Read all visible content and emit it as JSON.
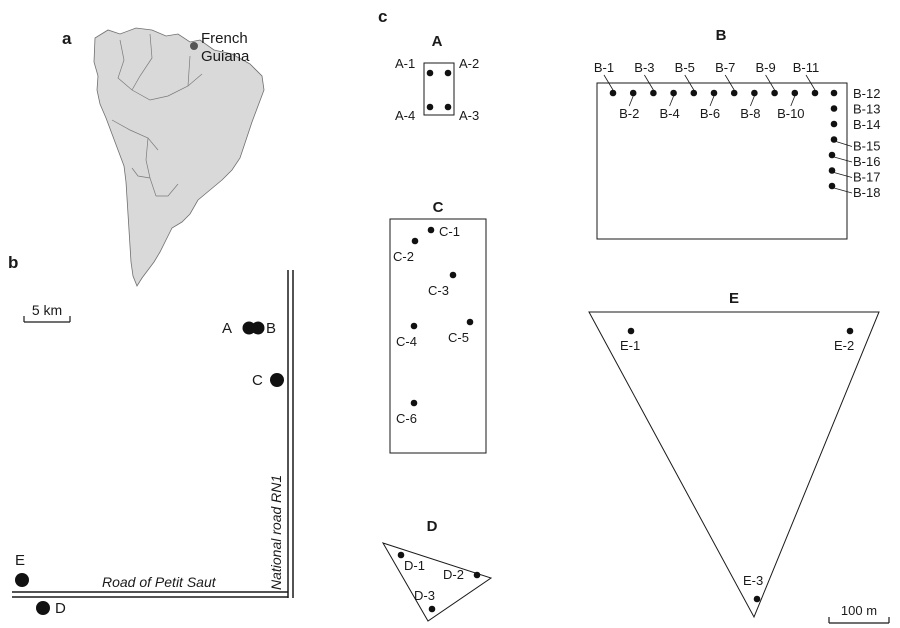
{
  "panels": {
    "a": "a",
    "b": "b",
    "c": "c"
  },
  "map_a": {
    "label_line1": "French",
    "label_line2": "Guiana",
    "marker_color": "#555555",
    "land_color": "#d9d9d9"
  },
  "map_b": {
    "scale_label": "5 km",
    "road_vertical": "National road RN1",
    "road_horizontal": "Road of Petit Saut",
    "sites": {
      "A": "A",
      "B": "B",
      "C": "C",
      "D": "D",
      "E": "E"
    }
  },
  "plots": {
    "A": {
      "title": "A",
      "trees": [
        "A-1",
        "A-2",
        "A-3",
        "A-4"
      ]
    },
    "B": {
      "title": "B",
      "trees": [
        "B-1",
        "B-2",
        "B-3",
        "B-4",
        "B-5",
        "B-6",
        "B-7",
        "B-8",
        "B-9",
        "B-10",
        "B-11",
        "B-12",
        "B-13",
        "B-14",
        "B-15",
        "B-16",
        "B-17",
        "B-18"
      ]
    },
    "C": {
      "title": "C",
      "trees": [
        "C-1",
        "C-2",
        "C-3",
        "C-4",
        "C-5",
        "C-6"
      ]
    },
    "D": {
      "title": "D",
      "trees": [
        "D-1",
        "D-2",
        "D-3"
      ]
    },
    "E": {
      "title": "E",
      "trees": [
        "E-1",
        "E-2",
        "E-3"
      ]
    }
  },
  "scale_c": "100 m"
}
